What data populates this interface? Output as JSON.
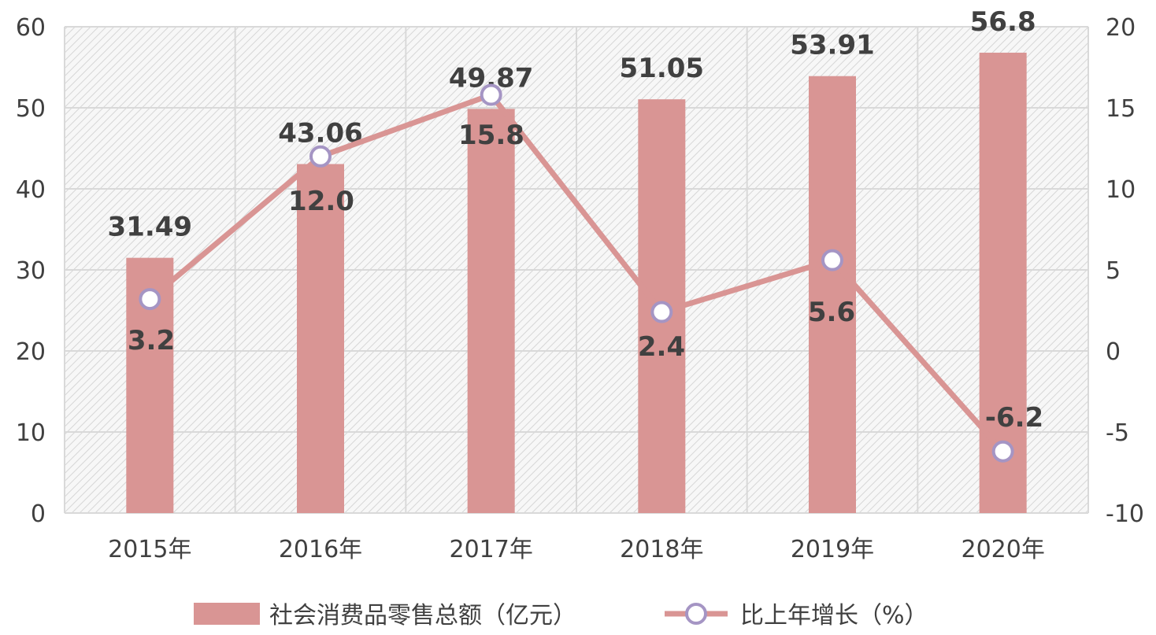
{
  "chart_data": {
    "type": "bar",
    "categories": [
      "2015年",
      "2016年",
      "2017年",
      "2018年",
      "2019年",
      "2020年"
    ],
    "series": [
      {
        "name": "社会消费品零售总额（亿元）",
        "type": "bar",
        "axis": "left",
        "values": [
          31.49,
          43.06,
          49.87,
          51.05,
          53.91,
          56.8
        ],
        "labels": [
          "31.49",
          "43.06",
          "49.87",
          "51.05",
          "53.91",
          "56.8"
        ],
        "color": "#d99594"
      },
      {
        "name": "比上年增长（%）",
        "type": "line",
        "axis": "right",
        "values": [
          3.2,
          12.0,
          15.8,
          2.4,
          5.6,
          -6.2
        ],
        "labels": [
          "3.2",
          "12.0",
          "15.8",
          "2.4",
          "5.6",
          "-6.2"
        ],
        "color": "#d99594",
        "marker_stroke": "#a595c4"
      }
    ],
    "y_left": {
      "range": [
        0,
        60
      ],
      "ticks": [
        "0",
        "10",
        "20",
        "30",
        "40",
        "50",
        "60"
      ]
    },
    "y_right": {
      "range": [
        -10,
        20
      ],
      "ticks": [
        "-10",
        "-5",
        "0",
        "5",
        "10",
        "15",
        "20"
      ]
    },
    "grid": true,
    "legend": "bottom"
  }
}
